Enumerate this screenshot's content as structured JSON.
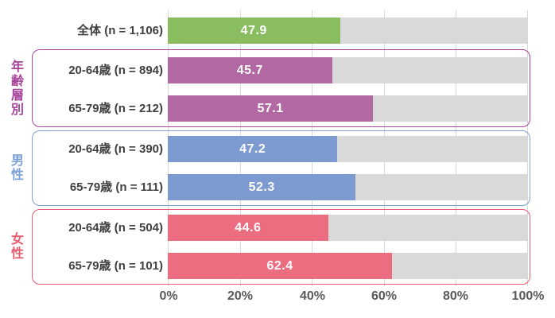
{
  "chart_data": {
    "type": "bar",
    "orientation": "horizontal",
    "title": "",
    "xlabel": "",
    "ylabel": "",
    "xlim": [
      0,
      100
    ],
    "grid": true,
    "unit": "%",
    "x_tick_labels": [
      "0%",
      "20%",
      "40%",
      "60%",
      "80%",
      "100%"
    ],
    "x_tick_values": [
      0,
      20,
      40,
      60,
      80,
      100
    ],
    "rows": [
      {
        "label": "全体 (n = 1,106)",
        "value": 47.9,
        "value_label": "47.9",
        "color": "#8ABD60"
      },
      {
        "label": "20-64歳 (n = 894)",
        "value": 45.7,
        "value_label": "45.7",
        "color": "#B269A3"
      },
      {
        "label": "65-79歳 (n = 212)",
        "value": 57.1,
        "value_label": "57.1",
        "color": "#B269A3"
      },
      {
        "label": "20-64歳 (n = 390)",
        "value": 47.2,
        "value_label": "47.2",
        "color": "#7D9AD1"
      },
      {
        "label": "65-79歳 (n = 111)",
        "value": 52.3,
        "value_label": "52.3",
        "color": "#7D9AD1"
      },
      {
        "label": "20-64歳 (n = 504)",
        "value": 44.6,
        "value_label": "44.6",
        "color": "#EC6D80"
      },
      {
        "label": "65-79歳 (n = 101)",
        "value": 62.4,
        "value_label": "62.4",
        "color": "#EC6D80"
      }
    ],
    "groups": [
      {
        "label": "年齢層別",
        "color": "#A8439B",
        "row_indexes": [
          1,
          2
        ]
      },
      {
        "label": "男性",
        "color": "#7CA0D8",
        "row_indexes": [
          3,
          4
        ]
      },
      {
        "label": "女性",
        "color": "#E95C6F",
        "row_indexes": [
          5,
          6
        ]
      }
    ],
    "colors": {
      "track": "#D9D9D9",
      "gridline": "#D9D9D9",
      "row_label_text": "#404040",
      "axis_label_text": "#595959",
      "bar_value_text": "#FFFFFF"
    }
  }
}
